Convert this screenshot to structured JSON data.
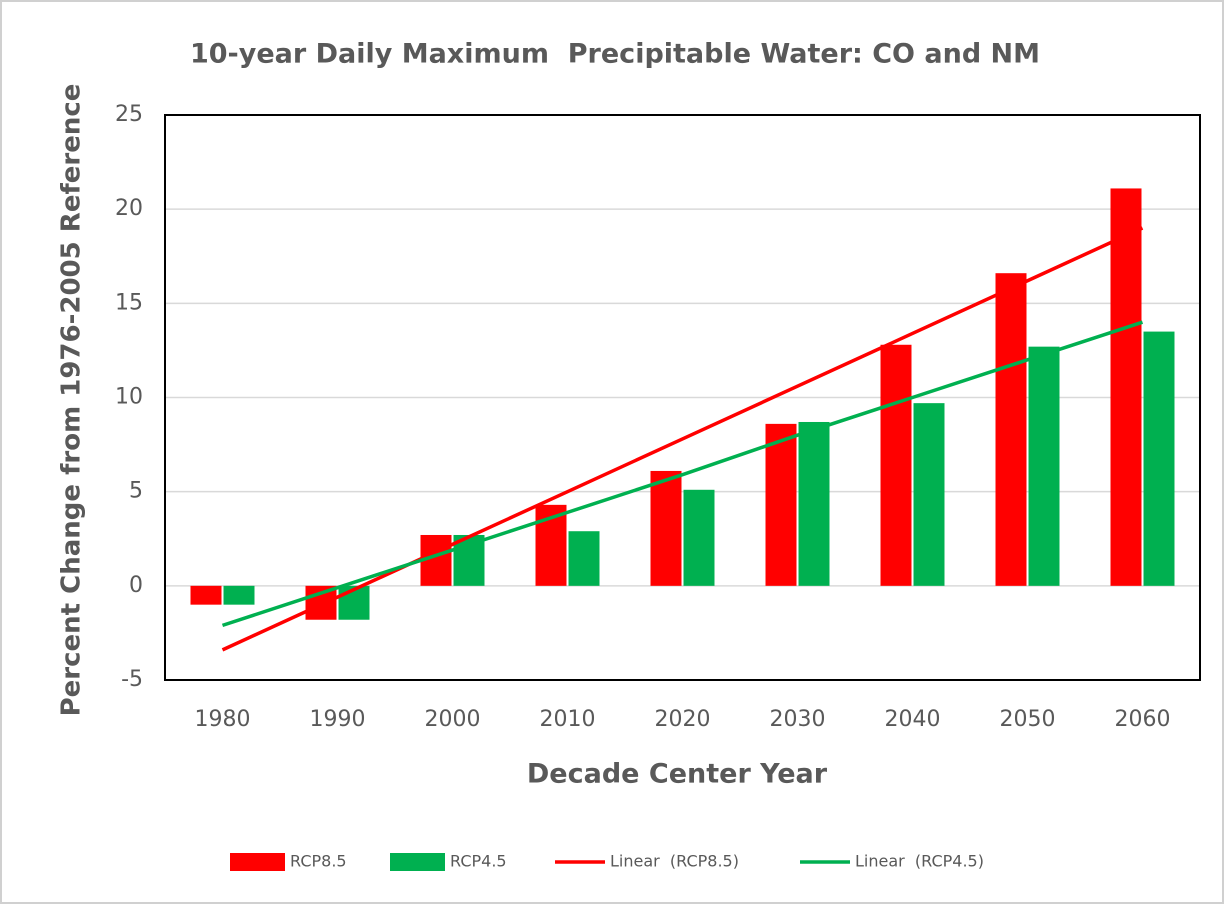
{
  "chart_data": {
    "type": "bar",
    "title": "10-year Daily Maximum  Precipitable Water: CO and NM",
    "x_label": "Decade Center Year",
    "y_label": "Percent Change from 1976-2005 Reference",
    "categories": [
      "1980",
      "1990",
      "2000",
      "2010",
      "2020",
      "2030",
      "2040",
      "2050",
      "2060"
    ],
    "series": [
      {
        "name": "RCP8.5",
        "type": "bar",
        "color": "#ff0000",
        "values": [
          -1.0,
          -1.8,
          2.7,
          4.3,
          6.1,
          8.6,
          12.8,
          16.6,
          21.1
        ]
      },
      {
        "name": "RCP4.5",
        "type": "bar",
        "color": "#00b050",
        "values": [
          -1.0,
          -1.8,
          2.7,
          2.9,
          5.1,
          8.7,
          9.7,
          12.7,
          13.5
        ]
      },
      {
        "name": "Linear  (RCP8.5)",
        "type": "line",
        "color": "#ff0000",
        "values": [
          -3.4,
          -0.6,
          2.2,
          5.0,
          7.8,
          10.6,
          13.4,
          16.2,
          19.0
        ]
      },
      {
        "name": "Linear  (RCP4.5)",
        "type": "line",
        "color": "#00b050",
        "values": [
          -2.1,
          -0.1,
          1.9,
          3.9,
          5.9,
          8.0,
          10.0,
          12.0,
          14.0
        ]
      }
    ],
    "ylim": [
      -5,
      25
    ],
    "yticks": [
      -5,
      0,
      5,
      10,
      15,
      20,
      25
    ],
    "grid": true,
    "legend": "bottom"
  }
}
